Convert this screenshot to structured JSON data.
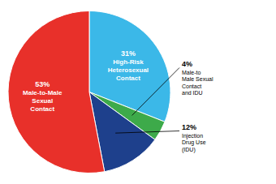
{
  "chart_data": {
    "type": "pie",
    "categories": [
      "High-Risk\nHeterosexual\nContact",
      "Male-to\nMale Sexual\nContact\nand IDU",
      "Injection\nDrug Use\n(IDU)",
      "Male-to-Male\nSexual\nContact"
    ],
    "values": [
      31,
      4,
      12,
      53
    ],
    "value_labels": [
      "31%",
      "4%",
      "12%",
      "53%"
    ],
    "colors": [
      "#3BB8E8",
      "#3DAA4A",
      "#1E408C",
      "#E8302A"
    ],
    "data_labels": true
  }
}
